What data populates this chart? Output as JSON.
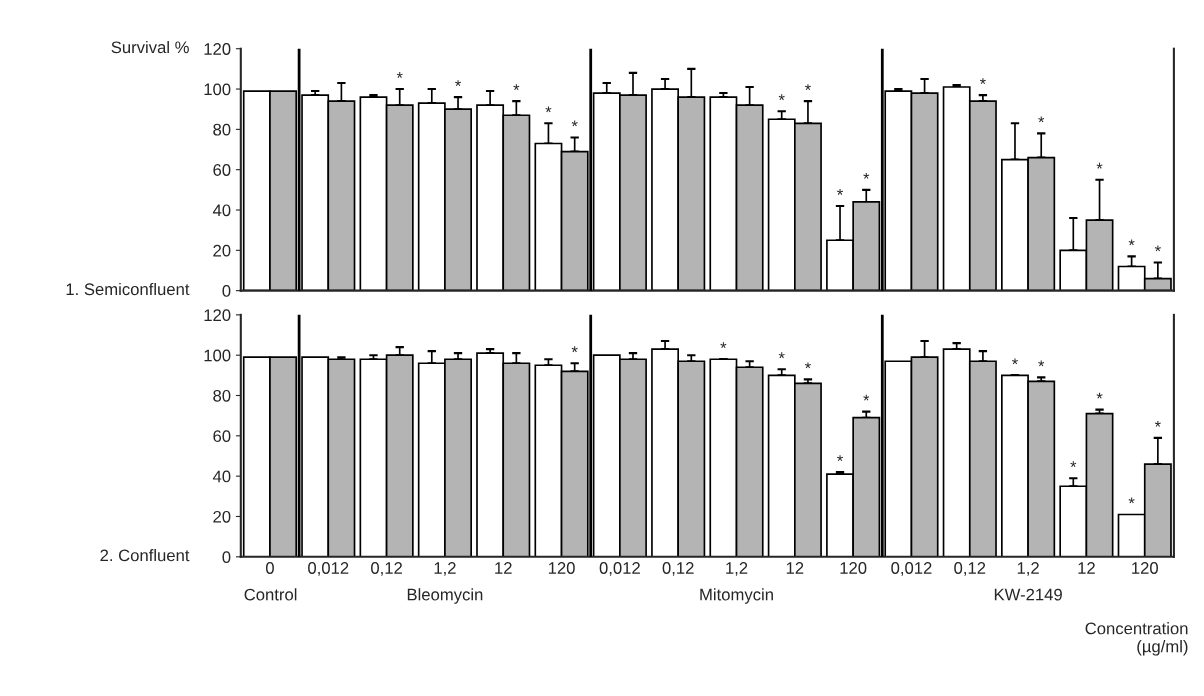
{
  "chart_data": [
    {
      "type": "bar",
      "title": "1. Semiconfluent",
      "ylabel": "Survival %",
      "categories": [
        "0",
        "0,012",
        "0,12",
        "1,2",
        "12",
        "120",
        "0,012",
        "0,12",
        "1,2",
        "12",
        "120",
        "0,012",
        "0,12",
        "1,2",
        "12",
        "120"
      ],
      "series": [
        {
          "color": "#ffffff",
          "values": [
            99,
            97,
            96,
            93,
            92,
            73,
            98,
            100,
            96,
            85,
            25,
            99,
            101,
            65,
            20,
            12
          ],
          "errors": [
            null,
            [
              97,
              99
            ],
            [
              96,
              97
            ],
            [
              93,
              100
            ],
            [
              92,
              99
            ],
            [
              73,
              83
            ],
            [
              98,
              103
            ],
            [
              100,
              105
            ],
            [
              96,
              98
            ],
            [
              85,
              89
            ],
            [
              25,
              42
            ],
            [
              99,
              100
            ],
            [
              101,
              102
            ],
            [
              65,
              83
            ],
            [
              20,
              36
            ],
            [
              12,
              17
            ]
          ],
          "value_labels": [
            null,
            null,
            null,
            null,
            null,
            "*",
            null,
            null,
            null,
            "*",
            "*",
            null,
            null,
            null,
            null,
            "*"
          ]
        },
        {
          "color": "#b4b4b4",
          "values": [
            99,
            94,
            92,
            90,
            87,
            69,
            97,
            96,
            92,
            83,
            44,
            98,
            94,
            66,
            35,
            6
          ],
          "errors": [
            null,
            [
              94,
              103
            ],
            [
              92,
              100
            ],
            [
              90,
              96
            ],
            [
              87,
              94
            ],
            [
              69,
              76
            ],
            [
              97,
              108
            ],
            [
              96,
              110
            ],
            [
              92,
              101
            ],
            [
              83,
              94
            ],
            [
              44,
              50
            ],
            [
              98,
              105
            ],
            [
              94,
              97
            ],
            [
              66,
              78
            ],
            [
              35,
              55
            ],
            [
              6,
              14
            ]
          ],
          "value_labels": [
            null,
            null,
            "*",
            "*",
            "*",
            "*",
            null,
            null,
            null,
            "*",
            "*",
            null,
            "*",
            "*",
            "*",
            "*"
          ]
        }
      ],
      "ylim": [
        0,
        120
      ],
      "yticks": [
        0,
        20,
        40,
        60,
        80,
        100,
        120
      ],
      "tick_labels": "y"
    },
    {
      "type": "bar",
      "title": "2. Confluent",
      "categories": [
        "0",
        "0,012",
        "0,12",
        "1,2",
        "12",
        "120",
        "0,012",
        "0,12",
        "1,2",
        "12",
        "120",
        "0,012",
        "0,12",
        "1,2",
        "12",
        "120"
      ],
      "series": [
        {
          "color": "#ffffff",
          "values": [
            99,
            99,
            98,
            96,
            101,
            95,
            100,
            103,
            98,
            90,
            41,
            97,
            103,
            90,
            35,
            21
          ],
          "errors": [
            null,
            null,
            [
              98,
              100
            ],
            [
              96,
              102
            ],
            [
              101,
              103
            ],
            [
              95,
              98
            ],
            null,
            [
              103,
              107
            ],
            [
              98,
              98
            ],
            [
              90,
              93
            ],
            [
              41,
              42
            ],
            null,
            [
              103,
              106
            ],
            [
              90,
              90
            ],
            [
              35,
              39
            ],
            null
          ],
          "value_labels": [
            null,
            null,
            null,
            null,
            null,
            null,
            null,
            null,
            "*",
            "*",
            "*",
            null,
            null,
            "*",
            "*",
            "*"
          ]
        },
        {
          "color": "#b4b4b4",
          "values": [
            99,
            98,
            100,
            98,
            96,
            92,
            98,
            97,
            94,
            86,
            69,
            99,
            97,
            87,
            71,
            46
          ],
          "errors": [
            null,
            [
              98,
              99
            ],
            [
              100,
              104
            ],
            [
              98,
              101
            ],
            [
              96,
              101
            ],
            [
              92,
              96
            ],
            [
              98,
              101
            ],
            [
              97,
              100
            ],
            [
              94,
              97
            ],
            [
              86,
              88
            ],
            [
              69,
              72
            ],
            [
              99,
              107
            ],
            [
              97,
              102
            ],
            [
              87,
              89
            ],
            [
              71,
              73
            ],
            [
              46,
              59
            ]
          ],
          "value_labels": [
            null,
            null,
            null,
            null,
            null,
            "*",
            null,
            null,
            null,
            "*",
            "*",
            null,
            null,
            "*",
            "*",
            "*"
          ]
        }
      ],
      "ylim": [
        0,
        120
      ],
      "yticks": [
        0,
        20,
        40,
        60,
        80,
        100,
        120
      ],
      "annotations": [
        "Control",
        "Bleomycin",
        "Mitomycin",
        "KW-2149",
        "Concentration\n(µg/ml)"
      ]
    }
  ]
}
